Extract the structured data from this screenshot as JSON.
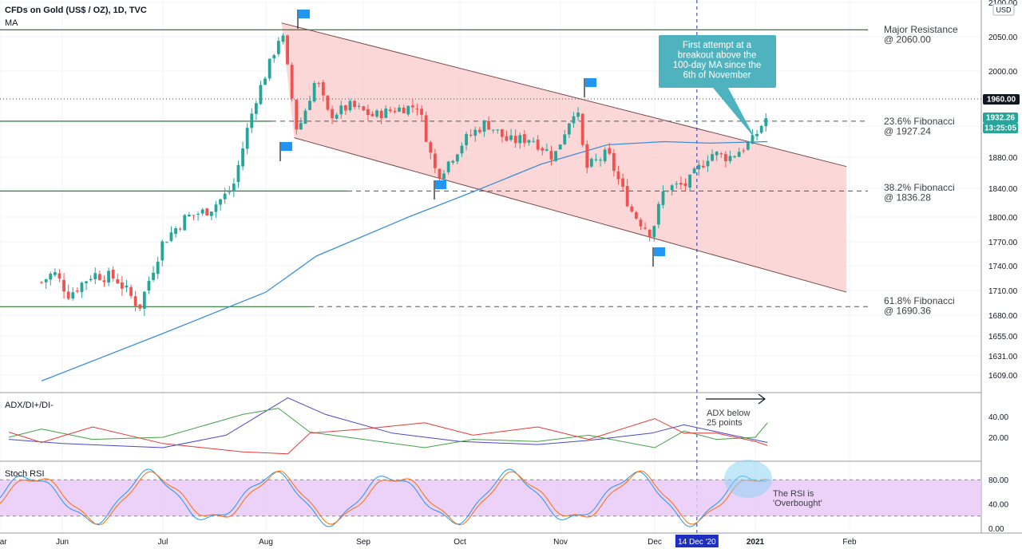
{
  "header": {
    "symbol_line": "CFDs on Gold (US$ / OZ), 1D, TVC",
    "indicator_line": "MA",
    "currency": "USD"
  },
  "axes": {
    "price_ticks": [
      "2100.00",
      "2050.00",
      "2000.00",
      "1960.00",
      "1920.00",
      "1880.00",
      "1840.00",
      "1800.00",
      "1770.00",
      "1740.00",
      "1710.00",
      "1680.00",
      "1655.00",
      "1631.00",
      "1609.00"
    ],
    "x_ticks": [
      "Jun",
      "Jul",
      "Aug",
      "Sep",
      "Oct",
      "Nov",
      "Dec",
      "2021",
      "Feb",
      "Mar"
    ],
    "adx_ticks": [
      "40.00",
      "20.00"
    ],
    "rsi_ticks": [
      "80.00",
      "40.00",
      "0.00"
    ],
    "highlight_date": "14 Dec '20"
  },
  "badges": {
    "level_1960": "1960.00",
    "last_price": "1932.26",
    "countdown": "13:25:05"
  },
  "annotations": {
    "major_resistance": [
      "Major Resistance",
      "@ 2060.00"
    ],
    "fib_236": [
      "23.6% Fibonacci",
      "@ 1927.24"
    ],
    "fib_382": [
      "38.2% Fibonacci",
      "@ 1836.28"
    ],
    "fib_618": [
      "61.8% Fibonacci",
      "@ 1690.36"
    ],
    "callout": [
      "First attempt at a",
      "breakout above the",
      "100-day MA since the",
      "6th of November"
    ],
    "adx_note": [
      "ADX below",
      "25 points"
    ],
    "rsi_note": [
      "The RSI is",
      "'Overbought'"
    ]
  },
  "panes": {
    "adx_title": "ADX/DI+/DI-",
    "rsi_title": "Stoch RSI"
  },
  "colors": {
    "bull": "#26a69a",
    "bear": "#ef5350",
    "ma": "#3d8fd6",
    "channel_fill": "#f9c9c9",
    "level_line": "#2e7d32",
    "callout": "#4fb3bf",
    "rsi_band": "#e9c9f7",
    "date_highlight": "#1e2fbf"
  },
  "chart_data": {
    "type": "candlestick",
    "title": "CFDs on Gold (US$ / OZ), 1D, TVC",
    "x_labels": [
      "Jun",
      "Jul",
      "Aug",
      "Sep",
      "Oct",
      "Nov",
      "Dec",
      "2021",
      "Feb",
      "Mar"
    ],
    "y_range": [
      1590,
      2105
    ],
    "levels": [
      {
        "label": "Major Resistance @ 2060.00",
        "value": 2060
      },
      {
        "label": "23.6% Fibonacci @ 1927.24",
        "value": 1927.24
      },
      {
        "label": "38.2% Fibonacci @ 1836.28",
        "value": 1836.28
      },
      {
        "label": "61.8% Fibonacci @ 1690.36",
        "value": 1690.36
      },
      {
        "label": "1960.00",
        "value": 1960
      }
    ],
    "close_path": [
      [
        "May 20",
        1720
      ],
      [
        "May 27",
        1732
      ],
      [
        "Jun 3",
        1705
      ],
      [
        "Jun 10",
        1730
      ],
      [
        "Jun 17",
        1725
      ],
      [
        "Jun 24",
        1690
      ],
      [
        "Jul 1",
        1770
      ],
      [
        "Jul 8",
        1800
      ],
      [
        "Jul 15",
        1810
      ],
      [
        "Jul 22",
        1840
      ],
      [
        "Jul 29",
        1960
      ],
      [
        "Aug 3",
        2020
      ],
      [
        "Aug 6",
        2060
      ],
      [
        "Aug 10",
        1940
      ],
      [
        "Aug 11",
        1910
      ],
      [
        "Aug 17",
        1990
      ],
      [
        "Aug 21",
        1935
      ],
      [
        "Aug 28",
        1950
      ],
      [
        "Sep 4",
        1935
      ],
      [
        "Sep 11",
        1945
      ],
      [
        "Sep 18",
        1950
      ],
      [
        "Sep 23",
        1865
      ],
      [
        "Sep 25",
        1860
      ],
      [
        "Oct 2",
        1900
      ],
      [
        "Oct 9",
        1925
      ],
      [
        "Oct 16",
        1900
      ],
      [
        "Oct 23",
        1905
      ],
      [
        "Oct 30",
        1880
      ],
      [
        "Nov 6",
        1950
      ],
      [
        "Nov 9",
        1865
      ],
      [
        "Nov 16",
        1885
      ],
      [
        "Nov 24",
        1805
      ],
      [
        "Nov 30",
        1780
      ],
      [
        "Dec 4",
        1840
      ],
      [
        "Dec 11",
        1845
      ],
      [
        "Dec 18",
        1885
      ],
      [
        "Dec 24",
        1880
      ],
      [
        "Dec 31",
        1900
      ],
      [
        "Jan 5",
        1935
      ]
    ],
    "ma_100_path": [
      [
        "May 20",
        1602
      ],
      [
        "Jul 1",
        1658
      ],
      [
        "Aug 1",
        1708
      ],
      [
        "Aug 17",
        1752
      ],
      [
        "Sep 15",
        1800
      ],
      [
        "Oct 5",
        1835
      ],
      [
        "Oct 26",
        1871
      ],
      [
        "Nov 16",
        1896
      ],
      [
        "Dec 4",
        1900
      ],
      [
        "Dec 18",
        1898
      ],
      [
        "Jan 5",
        1900
      ]
    ],
    "channel": {
      "upper": [
        [
          "Aug 6",
          2070
        ],
        [
          "Jan 31",
          1868
        ]
      ],
      "lower": [
        [
          "Aug 10",
          1905
        ],
        [
          "Jan 31",
          1708
        ]
      ]
    },
    "adx_ylim": [
      0,
      60
    ],
    "stoch_rsi_ylim": [
      0,
      100
    ],
    "stoch_rsi_band": [
      20,
      80
    ]
  }
}
